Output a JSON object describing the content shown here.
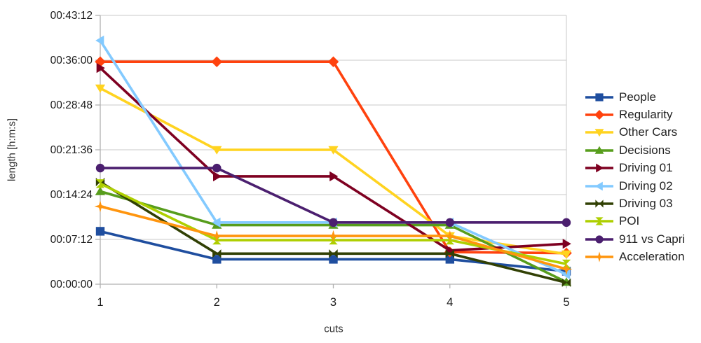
{
  "chart_data": {
    "type": "line",
    "title": "",
    "xlabel": "cuts",
    "ylabel": "length [h:m:s]",
    "x": [
      1,
      2,
      3,
      4,
      5
    ],
    "x_tick_labels": [
      "1",
      "2",
      "3",
      "4",
      "5"
    ],
    "y_tick_labels": [
      "00:00:00",
      "00:07:12",
      "00:14:24",
      "00:21:36",
      "00:28:48",
      "00:36:00",
      "00:43:12"
    ],
    "ylim_seconds": [
      0,
      2592
    ],
    "y_tick_step_seconds": 432,
    "grid": true,
    "legend_position": "right",
    "series": [
      {
        "name": "People",
        "color": "#1F4E9F",
        "marker": "square",
        "values_hms": [
          "00:08:30",
          "00:04:00",
          "00:04:00",
          "00:04:00",
          "00:02:05"
        ],
        "values_seconds": [
          510,
          240,
          240,
          240,
          125
        ]
      },
      {
        "name": "Regularity",
        "color": "#FF420E",
        "marker": "diamond",
        "values_hms": [
          "00:35:45",
          "00:35:45",
          "00:35:45",
          "00:05:10",
          "00:05:00"
        ],
        "values_seconds": [
          2145,
          2145,
          2145,
          310,
          300
        ]
      },
      {
        "name": "Other Cars",
        "color": "#FFD320",
        "marker": "arrow-down",
        "values_hms": [
          "00:31:30",
          "00:21:36",
          "00:21:36",
          "00:07:45",
          "00:04:50"
        ],
        "values_seconds": [
          1890,
          1296,
          1296,
          465,
          290
        ]
      },
      {
        "name": "Decisions",
        "color": "#579D1C",
        "marker": "arrow-up",
        "values_hms": [
          "00:14:55",
          "00:09:30",
          "00:09:30",
          "00:09:30",
          "00:00:20"
        ],
        "values_seconds": [
          895,
          570,
          570,
          570,
          20
        ]
      },
      {
        "name": "Driving 01",
        "color": "#7E0021",
        "marker": "arrow-right",
        "values_hms": [
          "00:34:45",
          "00:17:20",
          "00:17:20",
          "00:05:25",
          "00:06:30"
        ],
        "values_seconds": [
          2085,
          1040,
          1040,
          325,
          390
        ]
      },
      {
        "name": "Driving 02",
        "color": "#83CAFF",
        "marker": "arrow-left",
        "values_hms": [
          "00:39:10",
          "00:09:55",
          "00:09:55",
          "00:09:55",
          "00:01:35"
        ],
        "values_seconds": [
          2350,
          595,
          595,
          595,
          95
        ]
      },
      {
        "name": "Driving 03",
        "color": "#314004",
        "marker": "bowtie",
        "values_hms": [
          "00:16:25",
          "00:04:55",
          "00:04:55",
          "00:04:55",
          "00:00:15"
        ],
        "values_seconds": [
          985,
          295,
          295,
          295,
          15
        ]
      },
      {
        "name": "POI",
        "color": "#AECF00",
        "marker": "sandglass",
        "values_hms": [
          "00:16:10",
          "00:07:05",
          "00:07:05",
          "00:07:05",
          "00:03:15"
        ],
        "values_seconds": [
          970,
          425,
          425,
          425,
          195
        ]
      },
      {
        "name": "911 vs Capri",
        "color": "#4B1F6F",
        "marker": "circle",
        "values_hms": [
          "00:18:40",
          "00:18:40",
          "00:09:55",
          "00:09:55",
          "00:09:55"
        ],
        "values_seconds": [
          1120,
          1120,
          595,
          595,
          595
        ]
      },
      {
        "name": "Acceleration",
        "color": "#FF950E",
        "marker": "star",
        "values_hms": [
          "00:12:30",
          "00:07:45",
          "00:07:45",
          "00:07:45",
          "00:02:25"
        ],
        "values_seconds": [
          750,
          465,
          465,
          465,
          145
        ]
      }
    ]
  },
  "style_colors": {
    "grid": "#c9c9c9",
    "axis": "#b0b0b0",
    "tick_text": "#1a1a1a",
    "background": "#ffffff"
  }
}
